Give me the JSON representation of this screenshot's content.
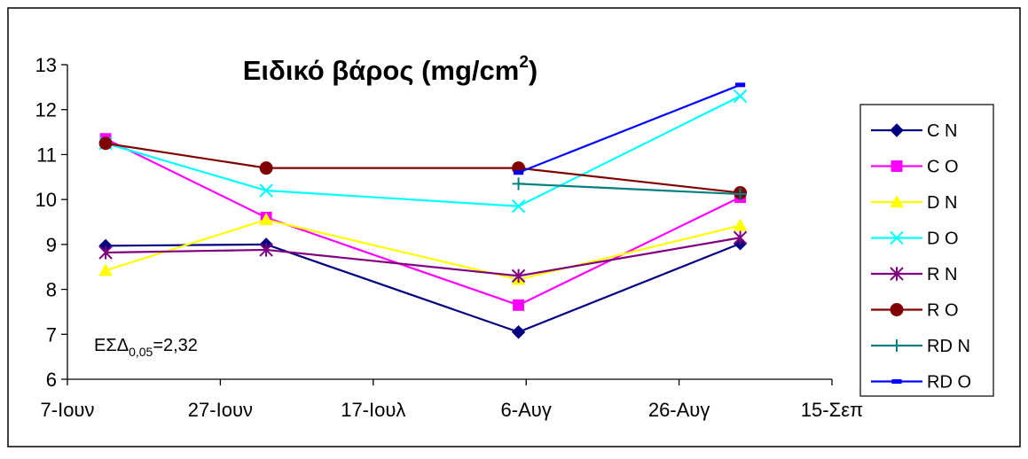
{
  "chart_data": {
    "type": "line",
    "title": "Ειδικό βάρος (mg/cm",
    "title_sup": "2",
    "title_end": ")",
    "annotation": {
      "prefix": "ΕΣΔ",
      "sub": "0,05",
      "suffix": "=2,32"
    },
    "x_ticks": [
      {
        "label": "7-Ιουν",
        "date": "2023-06-07"
      },
      {
        "label": "27-Ιουν",
        "date": "2023-06-27"
      },
      {
        "label": "17-Ιουλ",
        "date": "2023-07-17"
      },
      {
        "label": "6-Αυγ",
        "date": "2023-08-06"
      },
      {
        "label": "26-Αυγ",
        "date": "2023-08-26"
      },
      {
        "label": "15-Σεπ",
        "date": "2023-09-15"
      }
    ],
    "xlim": [
      "2023-06-07",
      "2023-09-15"
    ],
    "ylim": [
      6,
      13
    ],
    "y_ticks": [
      6,
      7,
      8,
      9,
      10,
      11,
      12,
      13
    ],
    "x": [
      "2023-06-12",
      "2023-07-03",
      "2023-08-05",
      "2023-09-03"
    ],
    "grid": false,
    "legend_position": "right",
    "series": [
      {
        "name": "C N",
        "color": "#000080",
        "marker": "diamond",
        "values": [
          8.97,
          9.0,
          7.05,
          9.02
        ]
      },
      {
        "name": "C O",
        "color": "#FF00FF",
        "marker": "square",
        "values": [
          11.35,
          9.6,
          7.65,
          10.05
        ]
      },
      {
        "name": "D N",
        "color": "#FFFF00",
        "marker": "triangle",
        "values": [
          8.42,
          9.55,
          8.22,
          9.42
        ]
      },
      {
        "name": "D O",
        "color": "#00FFFF",
        "marker": "x",
        "values": [
          11.25,
          10.2,
          9.85,
          12.3
        ]
      },
      {
        "name": "R N",
        "color": "#800080",
        "marker": "star",
        "values": [
          8.82,
          8.88,
          8.3,
          9.15
        ]
      },
      {
        "name": "R O",
        "color": "#800000",
        "marker": "circle",
        "values": [
          11.25,
          10.7,
          10.7,
          10.15
        ]
      },
      {
        "name": "RD N",
        "color": "#008080",
        "marker": "plus",
        "values": [
          null,
          null,
          10.35,
          10.12
        ]
      },
      {
        "name": "RD O",
        "color": "#0000FF",
        "marker": "dash",
        "values": [
          null,
          null,
          10.6,
          12.55
        ]
      }
    ]
  }
}
